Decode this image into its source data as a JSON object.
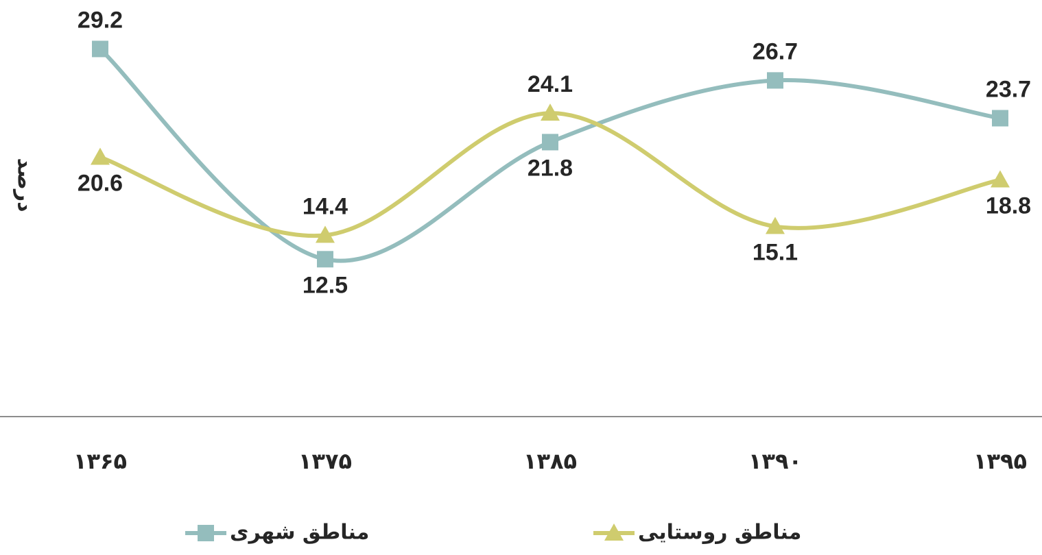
{
  "chart_data": {
    "type": "line",
    "y_label": "درصد",
    "categories": [
      "۱۳۶۵",
      "۱۳۷۵",
      "۱۳۸۵",
      "۱۳۹۰",
      "۱۳۹۵"
    ],
    "ylim": [
      0,
      32
    ],
    "series": [
      {
        "name": "مناطق شهری",
        "color": "#94bdbd",
        "marker": "square",
        "values": [
          29.2,
          12.5,
          21.8,
          26.7,
          23.7
        ]
      },
      {
        "name": "مناطق روستایی",
        "color": "#cfcc6e",
        "marker": "triangle",
        "values": [
          20.6,
          14.4,
          24.1,
          15.1,
          18.8
        ]
      }
    ]
  }
}
